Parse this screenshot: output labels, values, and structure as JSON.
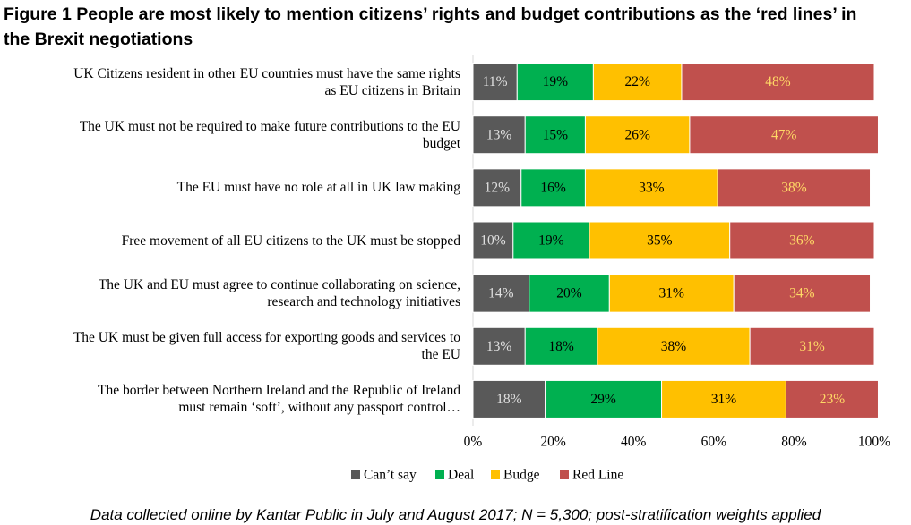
{
  "chart_data": {
    "type": "stacked-bar-horizontal",
    "title": "Figure 1 People are most likely to mention citizens’ rights and budget contributions  as the ‘red lines’ in the Brexit negotiations",
    "categories": [
      "UK Citizens resident in other EU countries must have the same rights as EU citizens in Britain",
      "The UK must not be required to make future contributions to the EU budget",
      "The EU must have no role at all in UK law making",
      "Free movement of all EU citizens to the UK must be stopped",
      "The UK and EU must agree to continue collaborating on science,  research and technology initiatives",
      "The UK must be given full access for exporting goods and services to the EU",
      "The border between Northern Ireland and the Republic of Ireland must remain ‘soft’, without any  passport control…"
    ],
    "series": [
      {
        "name": "Can’t say",
        "color": "#595959",
        "values": [
          11,
          13,
          12,
          10,
          14,
          13,
          18
        ],
        "value_labels": [
          "11%",
          "13%",
          "12%",
          "10%",
          "14%",
          "13%",
          "18%"
        ]
      },
      {
        "name": "Deal",
        "color": "#00b050",
        "values": [
          19,
          15,
          16,
          19,
          20,
          18,
          29
        ],
        "value_labels": [
          "19%",
          "15%",
          "16%",
          "19%",
          "20%",
          "18%",
          "29%"
        ]
      },
      {
        "name": "Budge",
        "color": "#ffc000",
        "values": [
          22,
          26,
          33,
          35,
          31,
          38,
          31
        ],
        "value_labels": [
          "22%",
          "26%",
          "33%",
          "35%",
          "31%",
          "38%",
          "31%"
        ]
      },
      {
        "name": "Red Line",
        "color": "#c0504d",
        "values": [
          48,
          47,
          38,
          36,
          34,
          31,
          23
        ],
        "value_labels": [
          "48%",
          "47%",
          "38%",
          "36%",
          "34%",
          "31%",
          "23%"
        ]
      }
    ],
    "xlim": [
      0,
      100
    ],
    "xticks": [
      {
        "value": 0,
        "label": "0%"
      },
      {
        "value": 20,
        "label": "20%"
      },
      {
        "value": 40,
        "label": "40%"
      },
      {
        "value": 60,
        "label": "60%"
      },
      {
        "value": 80,
        "label": "80%"
      },
      {
        "value": 100,
        "label": "100%"
      }
    ],
    "grid": false,
    "legend": "bottom",
    "footnote": "Data collected online by Kantar Public in July and August 2017; N = 5,300; post-stratification weights applied"
  }
}
